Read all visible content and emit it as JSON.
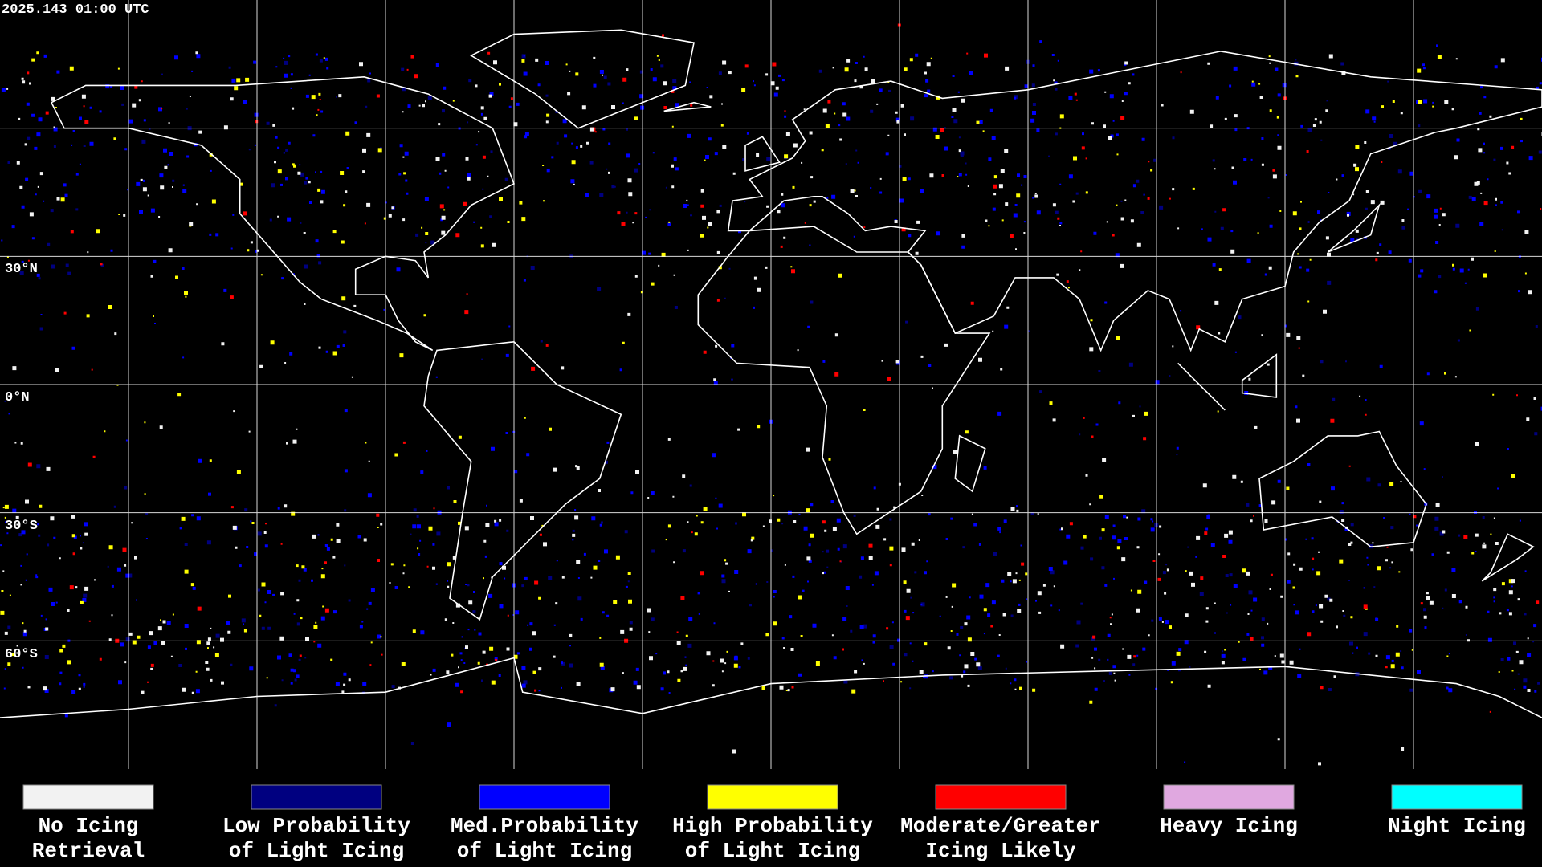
{
  "header": {
    "timestamp": "2025.143 01:00 UTC"
  },
  "map": {
    "latitude_labels": [
      "30°N",
      "0°N",
      "30°S",
      "60°S"
    ]
  },
  "legend": [
    {
      "color": "#f2f2f2",
      "lines": [
        "No Icing",
        "Retrieval"
      ]
    },
    {
      "color": "#000080",
      "lines": [
        "Low Probability",
        "of Light Icing"
      ]
    },
    {
      "color": "#0000ff",
      "lines": [
        "Med.Probability",
        "of Light Icing"
      ]
    },
    {
      "color": "#ffff00",
      "lines": [
        "High Probability",
        "of Light Icing"
      ]
    },
    {
      "color": "#ff0000",
      "lines": [
        "Moderate/Greater",
        "Icing Likely"
      ]
    },
    {
      "color": "#e0a8e0",
      "lines": [
        "Heavy Icing"
      ]
    },
    {
      "color": "#00ffff",
      "lines": [
        "Night Icing"
      ]
    }
  ]
}
